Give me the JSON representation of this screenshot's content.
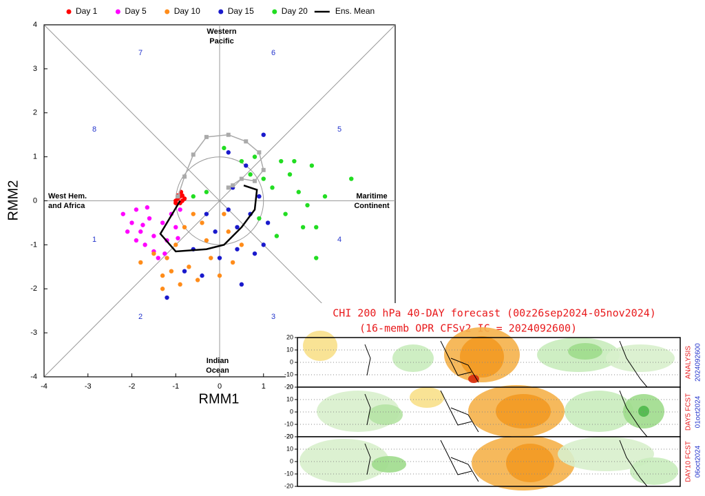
{
  "chart_data": [
    {
      "type": "scatter",
      "xlabel": "RMM1",
      "ylabel": "RMM2",
      "xlim": [
        -4,
        4
      ],
      "ylim": [
        -4,
        4
      ],
      "xticks": [
        -4,
        -3,
        -2,
        -1,
        0,
        1
      ],
      "yticks": [
        -4,
        -3,
        -2,
        -1,
        0,
        1,
        2,
        3,
        4
      ],
      "phase_labels": [
        "1",
        "2",
        "3",
        "4",
        "5",
        "6",
        "7",
        "8"
      ],
      "region_labels": [
        [
          "Western",
          "Pacific"
        ],
        [
          "Maritime",
          "Continent"
        ],
        [
          "Indian",
          "Ocean"
        ],
        [
          "West Hem.",
          "and Africa"
        ]
      ],
      "series": [
        {
          "name": "Day 1",
          "color": "#ff0000",
          "mode": "markers",
          "x": [
            -0.95,
            -0.85,
            -0.9,
            -1.0,
            -0.8,
            -0.9,
            -0.95,
            -0.85,
            -1.0,
            -0.88
          ],
          "y": [
            0.05,
            0.0,
            0.1,
            0.0,
            0.05,
            -0.05,
            0.12,
            0.12,
            -0.05,
            0.2
          ]
        },
        {
          "name": "Day 5",
          "color": "#ff00ff",
          "mode": "markers",
          "x": [
            -2.2,
            -2.0,
            -1.9,
            -1.8,
            -1.7,
            -1.6,
            -1.5,
            -1.4,
            -1.3,
            -1.2,
            -1.1,
            -1.0,
            -0.9,
            -1.9,
            -1.65,
            -1.5,
            -2.1,
            -1.25,
            -0.95,
            -1.75
          ],
          "y": [
            -0.3,
            -0.5,
            -0.2,
            -0.7,
            -1.0,
            -0.4,
            -0.8,
            -1.3,
            -0.5,
            -0.9,
            -0.3,
            -0.6,
            -0.2,
            -0.9,
            -0.15,
            -1.15,
            -0.7,
            -1.2,
            -0.85,
            -0.55
          ]
        },
        {
          "name": "Day 10",
          "color": "#ff8c1a",
          "mode": "markers",
          "x": [
            -1.8,
            -1.3,
            -1.2,
            -1.0,
            -0.8,
            -0.7,
            -0.5,
            -0.3,
            -0.2,
            0,
            0.2,
            0.3,
            -0.6,
            -1.3,
            -0.9,
            0.5,
            -1.5,
            -0.4,
            0.1,
            -1.1
          ],
          "y": [
            -1.4,
            -1.7,
            -1.3,
            -1.0,
            -0.6,
            -1.5,
            -1.8,
            -0.9,
            -1.3,
            -1.7,
            -0.7,
            -1.4,
            -0.3,
            -2.0,
            -1.9,
            -1.0,
            -1.2,
            -0.5,
            -0.3,
            -1.6
          ]
        },
        {
          "name": "Day 15",
          "color": "#1a1acc",
          "mode": "markers",
          "x": [
            -1.2,
            -0.8,
            -0.6,
            -0.4,
            -0.1,
            0,
            0.2,
            0.3,
            0.4,
            0.5,
            0.6,
            0.7,
            0.8,
            1.0,
            1.1,
            0.2,
            0.9,
            -0.3,
            0.4,
            1.0
          ],
          "y": [
            -2.2,
            -1.6,
            -1.1,
            -1.7,
            -0.7,
            -1.3,
            -0.2,
            0.3,
            -1.1,
            -1.9,
            0.8,
            -0.3,
            -1.2,
            1.5,
            -0.5,
            1.1,
            0.1,
            -0.3,
            -0.6,
            -1.0
          ]
        },
        {
          "name": "Day 20",
          "color": "#22dd22",
          "mode": "markers",
          "x": [
            0.1,
            0.5,
            0.8,
            1.0,
            1.2,
            1.4,
            1.6,
            1.8,
            2.0,
            2.2,
            2.4,
            3.0,
            2.1,
            1.5,
            1.3,
            0.9,
            -0.3,
            -0.6,
            2.2,
            1.7,
            1.9,
            0.7
          ],
          "y": [
            1.2,
            0.9,
            1.0,
            0.5,
            0.3,
            0.9,
            0.6,
            0.2,
            -0.1,
            -0.6,
            0.1,
            0.5,
            0.8,
            -0.3,
            -0.8,
            -0.4,
            0.2,
            0.1,
            -1.3,
            0.9,
            -0.6,
            0.6
          ]
        },
        {
          "name": "Ens. Mean",
          "color": "#000000",
          "mode": "lines",
          "x": [
            -0.9,
            -1.35,
            -1.0,
            -0.3,
            0.1,
            0.5,
            0.8,
            0.85,
            0.55
          ],
          "y": [
            0.0,
            -0.75,
            -1.15,
            -1.1,
            -1.0,
            -0.6,
            -0.2,
            0.25,
            0.35
          ]
        },
        {
          "color": "#aaaaaa",
          "mode": "lines+markers",
          "x": [
            -0.95,
            -0.8,
            -0.6,
            -0.3,
            0.2,
            0.6,
            0.9,
            1.0,
            0.8,
            0.5,
            0.2,
            0.3
          ],
          "y": [
            0.1,
            0.55,
            1.05,
            1.45,
            1.5,
            1.35,
            1.1,
            0.7,
            0.45,
            0.5,
            0.3,
            0.35
          ]
        }
      ]
    },
    {
      "type": "map",
      "title": "CHI 200 hPa 40-DAY forecast (00z26sep2024-05nov2024)",
      "subtitle": "(16-memb OPR CFSv2 IC = 2024092600)",
      "ylim": [
        -20,
        20
      ],
      "yticks": [
        20,
        10,
        0,
        -10,
        -20
      ],
      "panels": [
        {
          "label": "ANALYSIS",
          "date": "2024092600"
        },
        {
          "label": "DAY5 FCST",
          "date": "01oct2024"
        },
        {
          "label": "DAY10 FCST",
          "date": "06oct2024"
        }
      ]
    }
  ]
}
